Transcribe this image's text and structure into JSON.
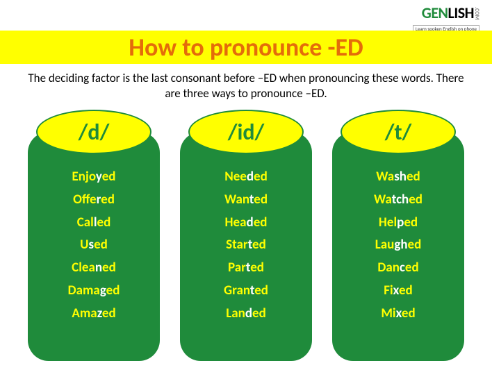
{
  "logo": {
    "gen_color": "#1f8b3b",
    "lish_color": "#000000",
    "com_color": "#888888",
    "gen": "GEN",
    "lish": "LISH",
    "com": ".COM",
    "tagline": "Learn spoken English on phone"
  },
  "title": {
    "text": "How to pronounce -ED",
    "color": "#e46c0a",
    "background": "#ffff00"
  },
  "subtitle": "The deciding factor is the last consonant before –ED when pronouncing these words. There are three ways to pronounce –ED.",
  "colors": {
    "pill_bg": "#ffff00",
    "pill_text": "#1f8b3b",
    "box_bg": "#1f8b3b",
    "word_color": "#ffff00",
    "highlight_color": "#ffffff"
  },
  "columns": [
    {
      "sound": "/d/",
      "words": [
        {
          "pre": "Enjo",
          "hl": "y",
          "post": "ed"
        },
        {
          "pre": "Offe",
          "hl": "r",
          "post": "ed"
        },
        {
          "pre": "Cal",
          "hl": "l",
          "post": "ed"
        },
        {
          "pre": "U",
          "hl": "s",
          "post": "ed"
        },
        {
          "pre": "Clea",
          "hl": "n",
          "post": "ed"
        },
        {
          "pre": "Dama",
          "hl": "g",
          "post": "ed"
        },
        {
          "pre": "Ama",
          "hl": "z",
          "post": "ed"
        }
      ]
    },
    {
      "sound": "/id/",
      "words": [
        {
          "pre": "Nee",
          "hl": "d",
          "post": "ed"
        },
        {
          "pre": "Wan",
          "hl": "t",
          "post": "ed"
        },
        {
          "pre": "Hea",
          "hl": "d",
          "post": "ed"
        },
        {
          "pre": "Star",
          "hl": "t",
          "post": "ed"
        },
        {
          "pre": "Par",
          "hl": "t",
          "post": "ed"
        },
        {
          "pre": "Gran",
          "hl": "t",
          "post": "ed"
        },
        {
          "pre": "Lan",
          "hl": "d",
          "post": "ed"
        }
      ]
    },
    {
      "sound": "/t/",
      "words": [
        {
          "pre": "Wa",
          "hl": "sh",
          "post": "ed"
        },
        {
          "pre": "Wa",
          "hl": "tch",
          "post": "ed"
        },
        {
          "pre": "Hel",
          "hl": "p",
          "post": "ed"
        },
        {
          "pre": "Lau",
          "hl": "gh",
          "post": "ed"
        },
        {
          "pre": "Dan",
          "hl": "c",
          "post": "ed"
        },
        {
          "pre": "Fi",
          "hl": "x",
          "post": "ed"
        },
        {
          "pre": "Mi",
          "hl": "x",
          "post": "ed"
        }
      ]
    }
  ]
}
